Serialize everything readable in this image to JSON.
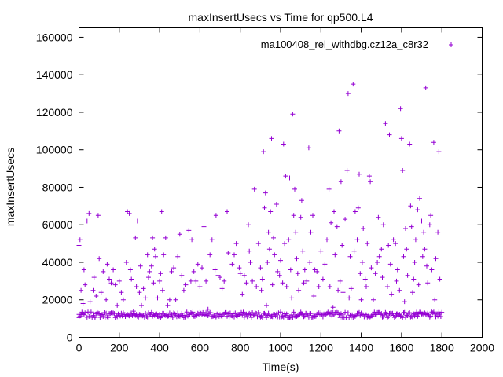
{
  "chart_data": {
    "type": "scatter",
    "title": "maxInsertUsecs vs Time for qp500.L4",
    "xlabel": "Time(s)",
    "ylabel": "maxInsertUsecs",
    "xlim": [
      0,
      2000
    ],
    "ylim": [
      0,
      165000
    ],
    "x_ticks": [
      0,
      200,
      400,
      600,
      800,
      1000,
      1200,
      1400,
      1600,
      1800,
      2000
    ],
    "y_ticks": [
      0,
      20000,
      40000,
      60000,
      80000,
      100000,
      120000,
      140000,
      160000
    ],
    "x_tick_labels": [
      "0",
      "200",
      "400",
      "600",
      "800",
      "1000",
      "1200",
      "1400",
      "1600",
      "1800",
      "2000"
    ],
    "y_tick_labels": [
      "0",
      "20000",
      "40000",
      "60000",
      "80000",
      "100000",
      "120000",
      "140000",
      "160000"
    ],
    "grid": false,
    "legend_position": "top-right",
    "marker": "+",
    "color": "#9400d3",
    "series": [
      {
        "name": "ma100408_rel_withdbg.cz12a_c8r32",
        "points": [
          [
            0,
            10500
          ],
          [
            0,
            49000
          ],
          [
            5,
            52000
          ],
          [
            10,
            25000
          ],
          [
            20,
            18000
          ],
          [
            25,
            36000
          ],
          [
            30,
            28000
          ],
          [
            40,
            62000
          ],
          [
            50,
            66000
          ],
          [
            55,
            19000
          ],
          [
            70,
            25000
          ],
          [
            75,
            32000
          ],
          [
            85,
            22000
          ],
          [
            95,
            65000
          ],
          [
            100,
            42000
          ],
          [
            110,
            24000
          ],
          [
            120,
            35000
          ],
          [
            135,
            20000
          ],
          [
            140,
            39000
          ],
          [
            150,
            31000
          ],
          [
            160,
            29000
          ],
          [
            170,
            36000
          ],
          [
            180,
            28000
          ],
          [
            190,
            17000
          ],
          [
            200,
            30000
          ],
          [
            210,
            24000
          ],
          [
            220,
            20000
          ],
          [
            235,
            40000
          ],
          [
            240,
            67000
          ],
          [
            250,
            66000
          ],
          [
            255,
            36000
          ],
          [
            260,
            31000
          ],
          [
            270,
            14000
          ],
          [
            280,
            53000
          ],
          [
            285,
            27000
          ],
          [
            290,
            62000
          ],
          [
            300,
            24000
          ],
          [
            305,
            38000
          ],
          [
            310,
            17000
          ],
          [
            320,
            26000
          ],
          [
            330,
            21000
          ],
          [
            340,
            44000
          ],
          [
            345,
            32000
          ],
          [
            350,
            35000
          ],
          [
            360,
            38000
          ],
          [
            365,
            53000
          ],
          [
            370,
            29000
          ],
          [
            375,
            47000
          ],
          [
            380,
            43000
          ],
          [
            390,
            21000
          ],
          [
            400,
            30000
          ],
          [
            405,
            34000
          ],
          [
            410,
            67000
          ],
          [
            415,
            25000
          ],
          [
            420,
            44000
          ],
          [
            430,
            53000
          ],
          [
            440,
            17000
          ],
          [
            450,
            20000
          ],
          [
            460,
            35000
          ],
          [
            470,
            37000
          ],
          [
            480,
            20000
          ],
          [
            490,
            43000
          ],
          [
            500,
            55000
          ],
          [
            510,
            33000
          ],
          [
            520,
            25000
          ],
          [
            530,
            28000
          ],
          [
            545,
            57000
          ],
          [
            555,
            30000
          ],
          [
            560,
            52000
          ],
          [
            570,
            35000
          ],
          [
            580,
            30000
          ],
          [
            590,
            39000
          ],
          [
            600,
            27000
          ],
          [
            610,
            37000
          ],
          [
            620,
            59000
          ],
          [
            630,
            30000
          ],
          [
            640,
            15000
          ],
          [
            650,
            44000
          ],
          [
            660,
            52000
          ],
          [
            675,
            36000
          ],
          [
            680,
            65000
          ],
          [
            690,
            33000
          ],
          [
            700,
            32000
          ],
          [
            710,
            26000
          ],
          [
            720,
            30000
          ],
          [
            735,
            67000
          ],
          [
            740,
            45000
          ],
          [
            760,
            39000
          ],
          [
            770,
            44000
          ],
          [
            780,
            50000
          ],
          [
            795,
            37000
          ],
          [
            800,
            34000
          ],
          [
            810,
            23000
          ],
          [
            820,
            33000
          ],
          [
            830,
            29000
          ],
          [
            840,
            60000
          ],
          [
            845,
            46000
          ],
          [
            850,
            40000
          ],
          [
            860,
            30000
          ],
          [
            870,
            79000
          ],
          [
            880,
            27000
          ],
          [
            890,
            50000
          ],
          [
            900,
            37000
          ],
          [
            905,
            25000
          ],
          [
            910,
            31000
          ],
          [
            915,
            99000
          ],
          [
            920,
            69000
          ],
          [
            925,
            77000
          ],
          [
            930,
            17000
          ],
          [
            935,
            40000
          ],
          [
            940,
            56000
          ],
          [
            945,
            47000
          ],
          [
            950,
            67000
          ],
          [
            955,
            106000
          ],
          [
            960,
            28000
          ],
          [
            965,
            53000
          ],
          [
            970,
            44000
          ],
          [
            980,
            71000
          ],
          [
            985,
            35000
          ],
          [
            995,
            33000
          ],
          [
            1000,
            41000
          ],
          [
            1010,
            29000
          ],
          [
            1015,
            103000
          ],
          [
            1020,
            50000
          ],
          [
            1025,
            86000
          ],
          [
            1030,
            27000
          ],
          [
            1040,
            52000
          ],
          [
            1045,
            85000
          ],
          [
            1050,
            36000
          ],
          [
            1055,
            21000
          ],
          [
            1060,
            119000
          ],
          [
            1065,
            65000
          ],
          [
            1070,
            79000
          ],
          [
            1075,
            56000
          ],
          [
            1080,
            42000
          ],
          [
            1085,
            34000
          ],
          [
            1090,
            25000
          ],
          [
            1100,
            64000
          ],
          [
            1105,
            73000
          ],
          [
            1110,
            46000
          ],
          [
            1115,
            29000
          ],
          [
            1120,
            36000
          ],
          [
            1130,
            30000
          ],
          [
            1140,
            101000
          ],
          [
            1145,
            40000
          ],
          [
            1150,
            56000
          ],
          [
            1160,
            65000
          ],
          [
            1165,
            22000
          ],
          [
            1170,
            36000
          ],
          [
            1180,
            35000
          ],
          [
            1190,
            27000
          ],
          [
            1200,
            46000
          ],
          [
            1210,
            31000
          ],
          [
            1220,
            39000
          ],
          [
            1230,
            52000
          ],
          [
            1240,
            79000
          ],
          [
            1245,
            27000
          ],
          [
            1250,
            61000
          ],
          [
            1260,
            16000
          ],
          [
            1265,
            67000
          ],
          [
            1270,
            44000
          ],
          [
            1280,
            59000
          ],
          [
            1285,
            25000
          ],
          [
            1290,
            110000
          ],
          [
            1295,
            30000
          ],
          [
            1300,
            83000
          ],
          [
            1305,
            49000
          ],
          [
            1310,
            24000
          ],
          [
            1320,
            63000
          ],
          [
            1330,
            89000
          ],
          [
            1335,
            130000
          ],
          [
            1340,
            21000
          ],
          [
            1345,
            43000
          ],
          [
            1350,
            26000
          ],
          [
            1360,
            135000
          ],
          [
            1365,
            46000
          ],
          [
            1370,
            67000
          ],
          [
            1380,
            52000
          ],
          [
            1385,
            69000
          ],
          [
            1390,
            87000
          ],
          [
            1395,
            34000
          ],
          [
            1400,
            20000
          ],
          [
            1405,
            40000
          ],
          [
            1410,
            58000
          ],
          [
            1420,
            31000
          ],
          [
            1425,
            27000
          ],
          [
            1430,
            50000
          ],
          [
            1440,
            86000
          ],
          [
            1445,
            83000
          ],
          [
            1450,
            37000
          ],
          [
            1460,
            20000
          ],
          [
            1470,
            34000
          ],
          [
            1480,
            40000
          ],
          [
            1485,
            64000
          ],
          [
            1490,
            43000
          ],
          [
            1500,
            47000
          ],
          [
            1505,
            32000
          ],
          [
            1510,
            60000
          ],
          [
            1520,
            114000
          ],
          [
            1530,
            27000
          ],
          [
            1535,
            49000
          ],
          [
            1540,
            108000
          ],
          [
            1545,
            39000
          ],
          [
            1550,
            23000
          ],
          [
            1560,
            52000
          ],
          [
            1570,
            50000
          ],
          [
            1575,
            30000
          ],
          [
            1580,
            36000
          ],
          [
            1590,
            25000
          ],
          [
            1595,
            122000
          ],
          [
            1600,
            106000
          ],
          [
            1605,
            89000
          ],
          [
            1610,
            43000
          ],
          [
            1615,
            19000
          ],
          [
            1620,
            58000
          ],
          [
            1625,
            47000
          ],
          [
            1630,
            33000
          ],
          [
            1640,
            103000
          ],
          [
            1645,
            70000
          ],
          [
            1650,
            59000
          ],
          [
            1655,
            24000
          ],
          [
            1660,
            31000
          ],
          [
            1665,
            40000
          ],
          [
            1670,
            52000
          ],
          [
            1680,
            68000
          ],
          [
            1685,
            28000
          ],
          [
            1690,
            74000
          ],
          [
            1700,
            62000
          ],
          [
            1705,
            43000
          ],
          [
            1710,
            56000
          ],
          [
            1715,
            47000
          ],
          [
            1720,
            133000
          ],
          [
            1725,
            38000
          ],
          [
            1730,
            29000
          ],
          [
            1740,
            60000
          ],
          [
            1745,
            65000
          ],
          [
            1750,
            36000
          ],
          [
            1760,
            104000
          ],
          [
            1765,
            20000
          ],
          [
            1770,
            42000
          ],
          [
            1780,
            56000
          ],
          [
            1785,
            99000
          ],
          [
            1790,
            31000
          ]
        ],
        "baseline": {
          "x_start": 0,
          "x_end": 1800,
          "step": 5,
          "y_min": 10500,
          "y_max": 13500
        }
      }
    ]
  }
}
